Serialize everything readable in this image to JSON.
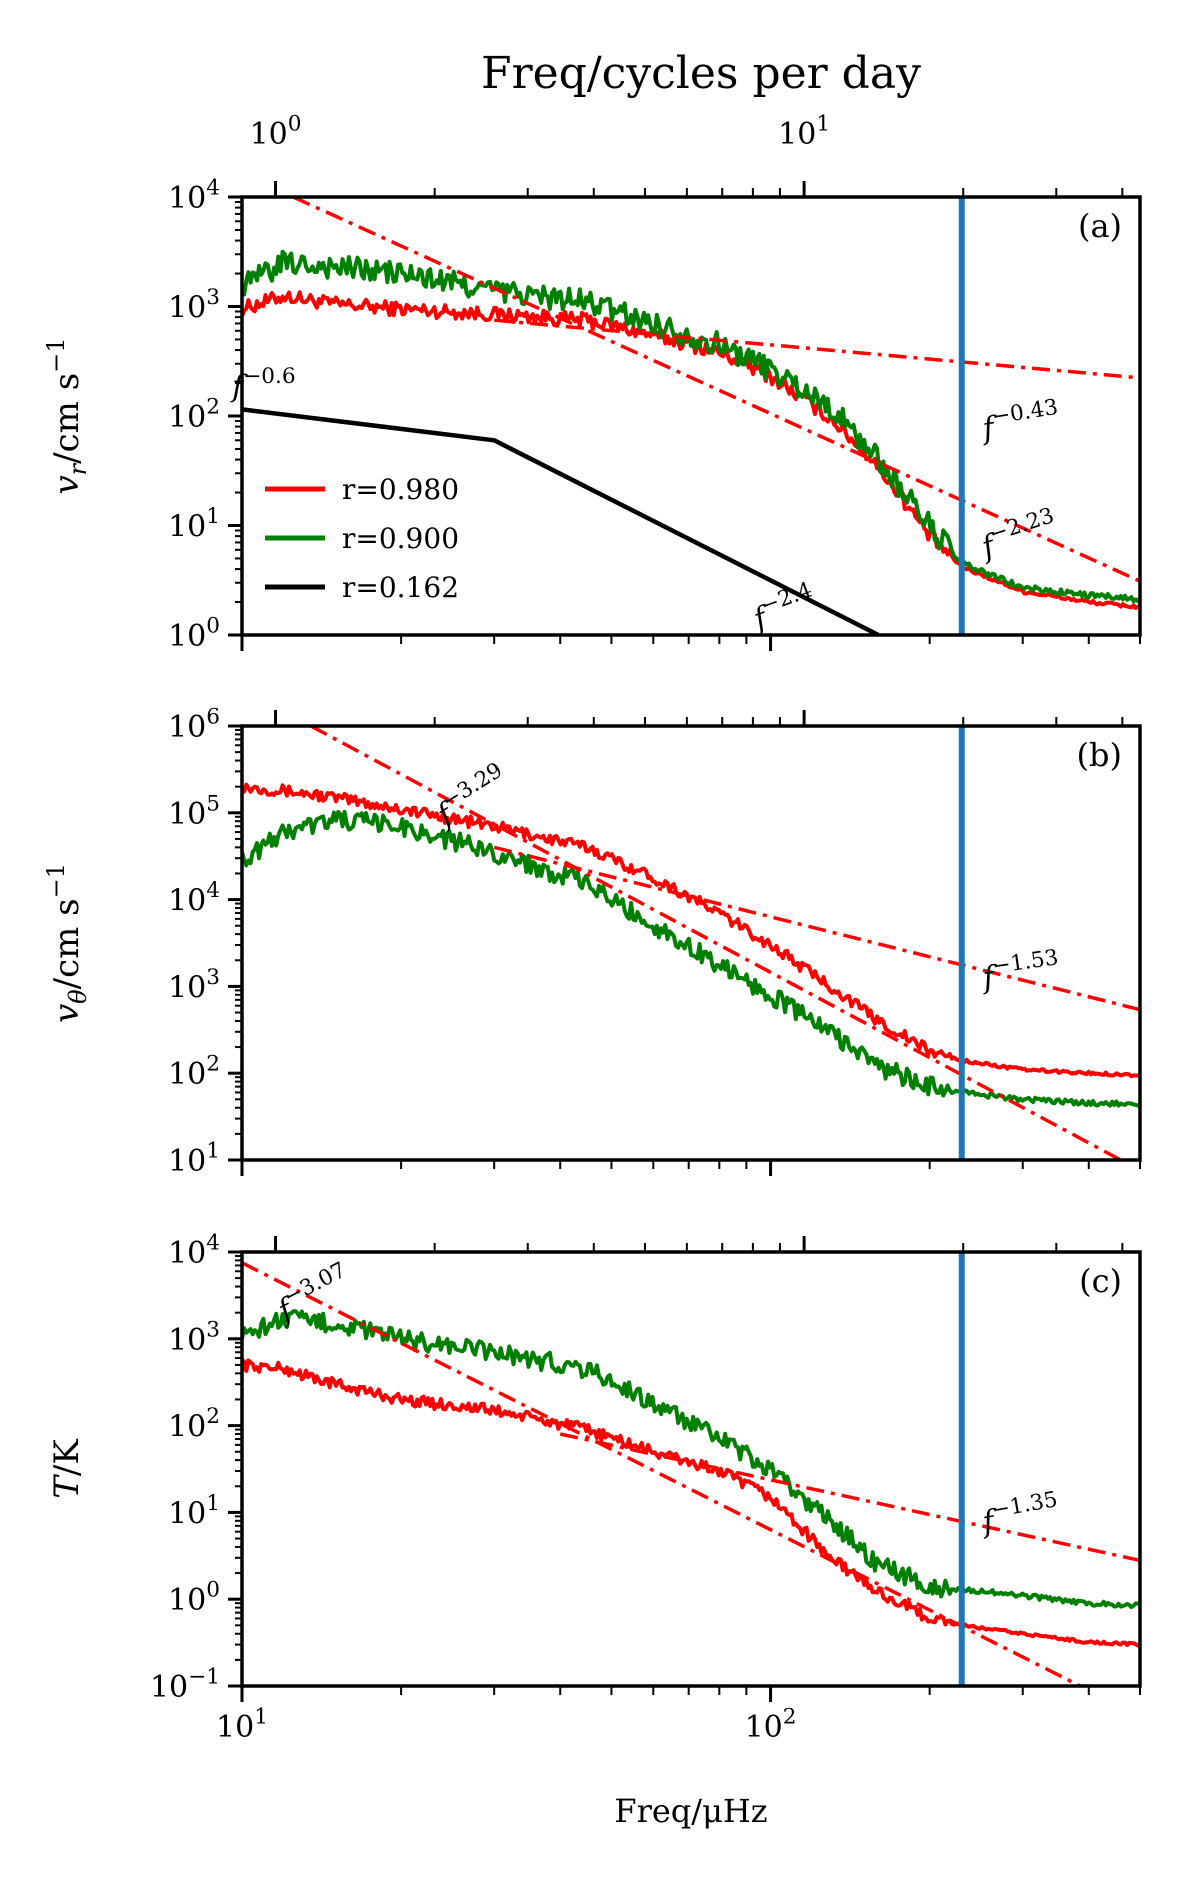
{
  "chart_data": {
    "type": "line",
    "title": "",
    "top_axis": {
      "label": "Freq/cycles per day",
      "ticks": [
        {
          "base": "10",
          "exp": "0",
          "value": 1
        },
        {
          "base": "10",
          "exp": "1",
          "value": 10
        }
      ]
    },
    "xlabel": "Freq/μHz",
    "xscale": "log",
    "xlim": [
      10,
      500
    ],
    "xticks": [
      {
        "base": "10",
        "exp": "1",
        "value": 10
      },
      {
        "base": "10",
        "exp": "2",
        "value": 100
      }
    ],
    "marker_frequency": 230,
    "legend": [
      {
        "label": "r=0.980",
        "color": "#ff0000"
      },
      {
        "label": "r=0.900",
        "color": "#008000"
      },
      {
        "label": "r=0.162",
        "color": "#000000"
      }
    ],
    "panels": [
      {
        "id": "a",
        "tag": "(a)",
        "ylabel": "v_r/cm s^-1",
        "ylim": [
          1,
          10000
        ],
        "yticks": [
          {
            "base": "10",
            "exp": "0",
            "value": 1
          },
          {
            "base": "10",
            "exp": "1",
            "value": 10
          },
          {
            "base": "10",
            "exp": "2",
            "value": 100
          },
          {
            "base": "10",
            "exp": "3",
            "value": 1000
          },
          {
            "base": "10",
            "exp": "4",
            "value": 10000
          }
        ],
        "series": [
          {
            "name": "r=0.980",
            "color": "#ff0000",
            "x": [
              10,
              12,
              15,
              20,
              30,
              45,
              60,
              80,
              100,
              130,
              160,
              200,
              230,
              300,
              400,
              500
            ],
            "y": [
              950,
              1250,
              1050,
              950,
              850,
              750,
              550,
              380,
              230,
              95,
              35,
              8,
              4.2,
              2.5,
              2,
              1.8
            ]
          },
          {
            "name": "r=0.900",
            "color": "#008000",
            "x": [
              10,
              12,
              15,
              20,
              30,
              45,
              60,
              80,
              100,
              130,
              160,
              200,
              230,
              300,
              400,
              500
            ],
            "y": [
              1500,
              2500,
              2300,
              2000,
              1400,
              1100,
              700,
              450,
              270,
              120,
              40,
              10,
              4.5,
              2.7,
              2.3,
              2.1
            ]
          },
          {
            "name": "r=0.162",
            "color": "#000000",
            "x": [
              10,
              30,
              160
            ],
            "y": [
              115,
              60,
              1
            ]
          }
        ],
        "fits": [
          {
            "label": "f^-0.43",
            "exponent": -0.43,
            "x": [
              30,
              500
            ],
            "y": [
              750,
              223
            ]
          },
          {
            "label": "f^-2.23",
            "exponent": -2.23,
            "x": [
              12.5,
              500
            ],
            "y": [
              10000,
              3.1
            ]
          }
        ],
        "annotations": [
          {
            "text": "f",
            "exp": "-0.6",
            "x": 11,
            "y": 150,
            "rotate": 0
          },
          {
            "text": "f",
            "exp": "-2.4",
            "x": 108,
            "y": 1.4,
            "rotate": -20
          },
          {
            "text": "f",
            "exp": "-0.43",
            "x": 300,
            "y": 70,
            "rotate": -9
          },
          {
            "text": "f",
            "exp": "-2.23",
            "x": 300,
            "y": 6.5,
            "rotate": -18
          }
        ]
      },
      {
        "id": "b",
        "tag": "(b)",
        "ylabel": "v_θ/cm s^-1",
        "ylim": [
          10,
          1000000
        ],
        "yticks": [
          {
            "base": "10",
            "exp": "1",
            "value": 10
          },
          {
            "base": "10",
            "exp": "2",
            "value": 100
          },
          {
            "base": "10",
            "exp": "3",
            "value": 1000
          },
          {
            "base": "10",
            "exp": "4",
            "value": 10000
          },
          {
            "base": "10",
            "exp": "5",
            "value": 100000
          },
          {
            "base": "10",
            "exp": "6",
            "value": 1000000
          }
        ],
        "series": [
          {
            "name": "r=0.980",
            "color": "#ff0000",
            "x": [
              10,
              12,
              15,
              20,
              30,
              45,
              60,
              80,
              100,
              130,
              160,
              200,
              230,
              300,
              400,
              500
            ],
            "y": [
              200000,
              180000,
              150000,
              110000,
              70000,
              40000,
              18000,
              7000,
              3000,
              1000,
              400,
              180,
              140,
              110,
              100,
              95
            ]
          },
          {
            "name": "r=0.900",
            "color": "#008000",
            "x": [
              10,
              12,
              15,
              20,
              30,
              45,
              60,
              80,
              100,
              130,
              160,
              200,
              230,
              300,
              400,
              500
            ],
            "y": [
              28000,
              60000,
              85000,
              70000,
              35000,
              15000,
              5000,
              1800,
              800,
              300,
              120,
              70,
              60,
              50,
              45,
              45
            ]
          }
        ],
        "fits": [
          {
            "label": "f^-3.29",
            "exponent": -3.29,
            "x": [
              13.5,
              500
            ],
            "y": [
              1000000,
              7.6
            ]
          },
          {
            "label": "f^-1.53",
            "exponent": -1.53,
            "x": [
              30,
              500
            ],
            "y": [
              40000,
              540
            ]
          }
        ],
        "annotations": [
          {
            "text": "f",
            "exp": "-3.29",
            "x": 28,
            "y": 120000,
            "rotate": -32
          },
          {
            "text": "f",
            "exp": "-1.53",
            "x": 300,
            "y": 1100,
            "rotate": -8
          }
        ]
      },
      {
        "id": "c",
        "tag": "(c)",
        "ylabel": "T/K",
        "ylim": [
          0.1,
          10000
        ],
        "yticks": [
          {
            "base": "10",
            "exp": "-1",
            "value": 0.1
          },
          {
            "base": "10",
            "exp": "0",
            "value": 1
          },
          {
            "base": "10",
            "exp": "1",
            "value": 10
          },
          {
            "base": "10",
            "exp": "2",
            "value": 100
          },
          {
            "base": "10",
            "exp": "3",
            "value": 1000
          },
          {
            "base": "10",
            "exp": "4",
            "value": 10000
          }
        ],
        "series": [
          {
            "name": "r=0.980",
            "color": "#ff0000",
            "x": [
              10,
              12,
              15,
              20,
              30,
              45,
              60,
              80,
              100,
              130,
              160,
              200,
              230,
              300,
              400,
              500
            ],
            "y": [
              500,
              450,
              300,
              200,
              150,
              90,
              50,
              30,
              15,
              3,
              1.2,
              0.6,
              0.5,
              0.4,
              0.32,
              0.3
            ]
          },
          {
            "name": "r=0.900",
            "color": "#008000",
            "x": [
              10,
              12,
              15,
              20,
              30,
              45,
              60,
              80,
              100,
              130,
              160,
              200,
              230,
              300,
              400,
              500
            ],
            "y": [
              1100,
              1700,
              1500,
              1000,
              700,
              450,
              180,
              70,
              30,
              8,
              2.5,
              1.4,
              1.3,
              1.1,
              0.9,
              0.85
            ]
          }
        ],
        "fits": [
          {
            "label": "f^-3.07",
            "exponent": -3.07,
            "x": [
              10,
              450
            ],
            "y": [
              7500,
              0.062
            ]
          },
          {
            "label": "f^-1.35",
            "exponent": -1.35,
            "x": [
              40,
              500
            ],
            "y": [
              80,
              2.8
            ]
          }
        ],
        "annotations": [
          {
            "text": "f",
            "exp": "-3.07",
            "x": 14,
            "y": 2500,
            "rotate": -27
          },
          {
            "text": "f",
            "exp": "-1.35",
            "x": 300,
            "y": 7,
            "rotate": -10
          }
        ]
      }
    ]
  }
}
